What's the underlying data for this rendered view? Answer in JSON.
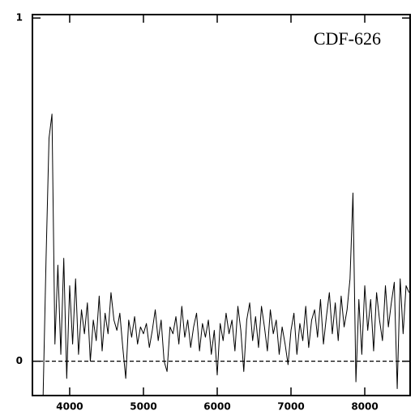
{
  "chart_data": {
    "type": "line",
    "annotation": "CDF-626",
    "x": [
      3640,
      3680,
      3720,
      3760,
      3800,
      3840,
      3880,
      3920,
      3960,
      4000,
      4040,
      4080,
      4120,
      4160,
      4200,
      4240,
      4280,
      4320,
      4360,
      4400,
      4440,
      4480,
      4520,
      4560,
      4600,
      4640,
      4680,
      4720,
      4760,
      4800,
      4840,
      4880,
      4920,
      4960,
      5000,
      5040,
      5080,
      5120,
      5160,
      5200,
      5240,
      5280,
      5320,
      5360,
      5400,
      5440,
      5480,
      5520,
      5560,
      5600,
      5640,
      5680,
      5720,
      5760,
      5800,
      5840,
      5880,
      5920,
      5960,
      6000,
      6040,
      6080,
      6120,
      6160,
      6200,
      6240,
      6280,
      6320,
      6360,
      6400,
      6440,
      6480,
      6520,
      6560,
      6600,
      6640,
      6680,
      6720,
      6760,
      6800,
      6840,
      6880,
      6920,
      6960,
      7000,
      7040,
      7080,
      7120,
      7160,
      7200,
      7240,
      7280,
      7320,
      7360,
      7400,
      7440,
      7480,
      7520,
      7560,
      7600,
      7640,
      7680,
      7720,
      7760,
      7800,
      7840,
      7880,
      7920,
      7960,
      8000,
      8040,
      8080,
      8120,
      8160,
      8200,
      8240,
      8280,
      8320,
      8360,
      8400,
      8440,
      8480,
      8520,
      8560,
      8600
    ],
    "series": [
      {
        "color": "#000000",
        "values": [
          -0.1,
          0.3,
          0.65,
          0.72,
          0.05,
          0.28,
          0.02,
          0.3,
          -0.05,
          0.22,
          0.05,
          0.24,
          0.02,
          0.15,
          0.08,
          0.17,
          0.0,
          0.12,
          0.06,
          0.19,
          0.03,
          0.14,
          0.08,
          0.2,
          0.12,
          0.09,
          0.14,
          0.04,
          -0.05,
          0.12,
          0.07,
          0.13,
          0.05,
          0.1,
          0.08,
          0.11,
          0.04,
          0.09,
          0.15,
          0.06,
          0.12,
          0.0,
          -0.03,
          0.1,
          0.08,
          0.13,
          0.05,
          0.16,
          0.07,
          0.12,
          0.04,
          0.1,
          0.14,
          0.03,
          0.11,
          0.07,
          0.12,
          0.02,
          0.09,
          -0.04,
          0.11,
          0.06,
          0.14,
          0.08,
          0.12,
          0.03,
          0.16,
          0.09,
          -0.03,
          0.12,
          0.17,
          0.06,
          0.13,
          0.04,
          0.16,
          0.1,
          0.03,
          0.15,
          0.08,
          0.12,
          0.02,
          0.1,
          0.05,
          -0.01,
          0.09,
          0.14,
          0.02,
          0.11,
          0.06,
          0.16,
          0.04,
          0.12,
          0.15,
          0.07,
          0.18,
          0.05,
          0.13,
          0.2,
          0.08,
          0.17,
          0.06,
          0.19,
          0.1,
          0.15,
          0.24,
          0.49,
          -0.06,
          0.18,
          0.02,
          0.22,
          0.09,
          0.18,
          0.03,
          0.2,
          0.12,
          0.06,
          0.22,
          0.1,
          0.17,
          0.23,
          -0.08,
          0.24,
          0.08,
          0.22,
          0.2
        ]
      }
    ],
    "xlim": [
      3495,
      8615
    ],
    "ylim": [
      -0.1,
      1.01
    ],
    "xticks": [
      4000,
      5000,
      6000,
      7000,
      8000
    ],
    "yticks": [
      0,
      1
    ],
    "hline": 0
  }
}
